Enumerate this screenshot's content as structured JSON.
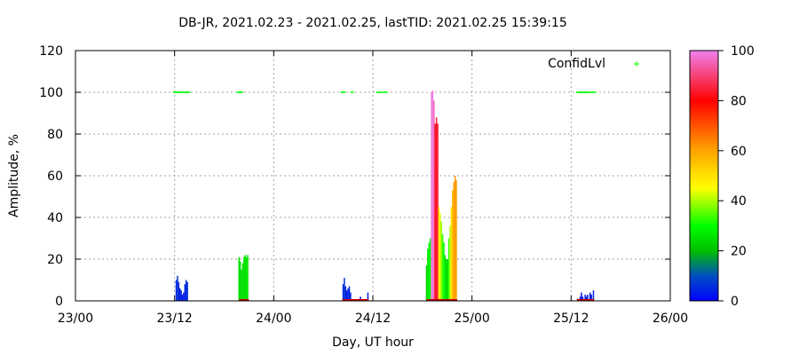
{
  "chart_data": {
    "type": "bar",
    "title": "DB-JR, 2021.02.23 - 2021.02.25, lastTID: 2021.02.25 15:39:15",
    "xlabel": "Day, UT hour",
    "ylabel": "Amplitude, %",
    "xlim": [
      0,
      72
    ],
    "ylim": [
      0,
      120
    ],
    "x_ticks": [
      {
        "v": 0,
        "label": "23/00"
      },
      {
        "v": 12,
        "label": "23/12"
      },
      {
        "v": 24,
        "label": "24/00"
      },
      {
        "v": 36,
        "label": "24/12"
      },
      {
        "v": 48,
        "label": "25/00"
      },
      {
        "v": 60,
        "label": "25/12"
      },
      {
        "v": 72,
        "label": "26/00"
      }
    ],
    "y_ticks": [
      0,
      20,
      40,
      60,
      80,
      100,
      120
    ],
    "grid": true,
    "legend": {
      "label": "ConfidLvl",
      "position": "top-right",
      "color": "#00ff00"
    },
    "colorbar": {
      "min": 0,
      "max": 100,
      "ticks": [
        0,
        20,
        40,
        60,
        80,
        100
      ]
    },
    "series": [
      {
        "bars": [
          {
            "x": 12.2,
            "y": 10,
            "c": 5
          },
          {
            "x": 12.35,
            "y": 12,
            "c": 6
          },
          {
            "x": 12.5,
            "y": 9,
            "c": 5
          },
          {
            "x": 12.65,
            "y": 6,
            "c": 4
          },
          {
            "x": 12.8,
            "y": 5,
            "c": 4
          },
          {
            "x": 12.95,
            "y": 3,
            "c": 3
          },
          {
            "x": 13.1,
            "y": 4,
            "c": 3
          },
          {
            "x": 13.25,
            "y": 8,
            "c": 5
          },
          {
            "x": 13.4,
            "y": 10,
            "c": 6
          },
          {
            "x": 13.55,
            "y": 9,
            "c": 5
          },
          {
            "x": 19.8,
            "y": 21,
            "c": 25
          },
          {
            "x": 19.95,
            "y": 19,
            "c": 25
          },
          {
            "x": 20.1,
            "y": 15,
            "c": 24
          },
          {
            "x": 20.25,
            "y": 18,
            "c": 25
          },
          {
            "x": 20.4,
            "y": 21,
            "c": 25
          },
          {
            "x": 20.55,
            "y": 22,
            "c": 26
          },
          {
            "x": 20.7,
            "y": 21,
            "c": 25
          },
          {
            "x": 20.85,
            "y": 22,
            "c": 26
          },
          {
            "x": 32.4,
            "y": 8,
            "c": 5
          },
          {
            "x": 32.55,
            "y": 11,
            "c": 6
          },
          {
            "x": 32.7,
            "y": 7,
            "c": 5
          },
          {
            "x": 32.85,
            "y": 5,
            "c": 4
          },
          {
            "x": 33.0,
            "y": 6,
            "c": 4
          },
          {
            "x": 33.15,
            "y": 7,
            "c": 5
          },
          {
            "x": 33.3,
            "y": 4,
            "c": 3
          },
          {
            "x": 34.5,
            "y": 2,
            "c": 2
          },
          {
            "x": 35.4,
            "y": 4,
            "c": 3
          },
          {
            "x": 42.5,
            "y": 17,
            "c": 22
          },
          {
            "x": 42.65,
            "y": 25,
            "c": 26
          },
          {
            "x": 42.8,
            "y": 28,
            "c": 28
          },
          {
            "x": 42.95,
            "y": 30,
            "c": 30
          },
          {
            "x": 43.1,
            "y": 100,
            "c": 98
          },
          {
            "x": 43.25,
            "y": 101,
            "c": 99
          },
          {
            "x": 43.4,
            "y": 96,
            "c": 95
          },
          {
            "x": 43.55,
            "y": 85,
            "c": 82
          },
          {
            "x": 43.7,
            "y": 88,
            "c": 84
          },
          {
            "x": 43.85,
            "y": 85,
            "c": 83
          },
          {
            "x": 44.0,
            "y": 45,
            "c": 46
          },
          {
            "x": 44.15,
            "y": 42,
            "c": 43
          },
          {
            "x": 44.3,
            "y": 38,
            "c": 38
          },
          {
            "x": 44.45,
            "y": 32,
            "c": 33
          },
          {
            "x": 44.6,
            "y": 28,
            "c": 30
          },
          {
            "x": 44.75,
            "y": 22,
            "c": 26
          },
          {
            "x": 44.9,
            "y": 20,
            "c": 25
          },
          {
            "x": 45.05,
            "y": 20,
            "c": 25
          },
          {
            "x": 45.2,
            "y": 30,
            "c": 33
          },
          {
            "x": 45.35,
            "y": 36,
            "c": 40
          },
          {
            "x": 45.5,
            "y": 45,
            "c": 50
          },
          {
            "x": 45.65,
            "y": 53,
            "c": 56
          },
          {
            "x": 45.8,
            "y": 57,
            "c": 60
          },
          {
            "x": 45.95,
            "y": 60,
            "c": 62
          },
          {
            "x": 46.1,
            "y": 58,
            "c": 61
          },
          {
            "x": 60.8,
            "y": 1,
            "c": 2
          },
          {
            "x": 61.1,
            "y": 2,
            "c": 2
          },
          {
            "x": 61.25,
            "y": 4,
            "c": 3
          },
          {
            "x": 61.4,
            "y": 2,
            "c": 2
          },
          {
            "x": 61.7,
            "y": 3,
            "c": 3
          },
          {
            "x": 61.85,
            "y": 2,
            "c": 2
          },
          {
            "x": 62.0,
            "y": 3,
            "c": 3
          },
          {
            "x": 62.3,
            "y": 4,
            "c": 3
          },
          {
            "x": 62.45,
            "y": 3,
            "c": 3
          },
          {
            "x": 62.7,
            "y": 5,
            "c": 4
          }
        ]
      },
      {
        "name": "ConfidLvl",
        "points_x": [
          12.0,
          12.2,
          12.4,
          12.5,
          12.6,
          12.8,
          13.0,
          13.3,
          13.5,
          13.7,
          19.7,
          19.9,
          20.1,
          32.3,
          32.5,
          33.5,
          36.6,
          36.9,
          37.3,
          37.6,
          60.8,
          61.0,
          61.2,
          61.4,
          61.6,
          61.8,
          62.0,
          62.2,
          62.6,
          62.8
        ],
        "y": 100
      }
    ],
    "red_segments": [
      [
        19.8,
        21.0
      ],
      [
        32.3,
        35.5
      ],
      [
        42.5,
        46.2
      ],
      [
        60.7,
        62.8
      ]
    ]
  }
}
